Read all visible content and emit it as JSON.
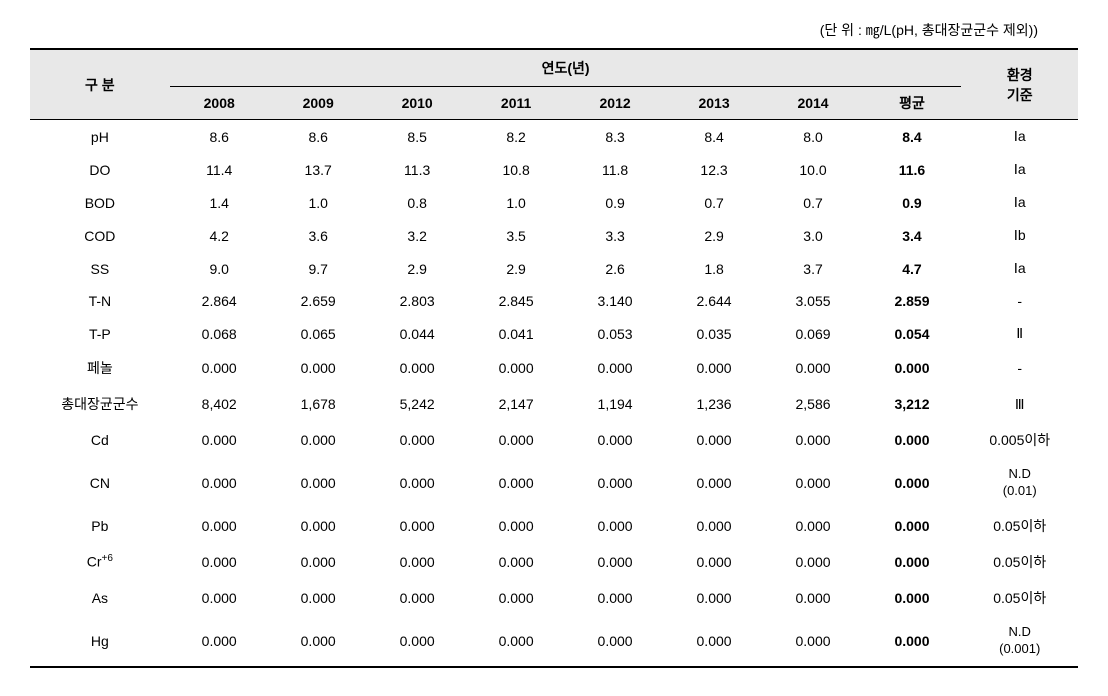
{
  "unit_note": "(단 위 : ㎎/L(pH, 총대장균군수 제외))",
  "header": {
    "category": "구 분",
    "year_group": "연도(년)",
    "standard": "환경\n기준",
    "years": [
      "2008",
      "2009",
      "2010",
      "2011",
      "2012",
      "2013",
      "2014"
    ],
    "average": "평균"
  },
  "rows": [
    {
      "label": "pH",
      "y2008": "8.6",
      "y2009": "8.6",
      "y2010": "8.5",
      "y2011": "8.2",
      "y2012": "8.3",
      "y2013": "8.4",
      "y2014": "8.0",
      "avg": "8.4",
      "std": "Ⅰa"
    },
    {
      "label": "DO",
      "y2008": "11.4",
      "y2009": "13.7",
      "y2010": "11.3",
      "y2011": "10.8",
      "y2012": "11.8",
      "y2013": "12.3",
      "y2014": "10.0",
      "avg": "11.6",
      "std": "Ⅰa"
    },
    {
      "label": "BOD",
      "y2008": "1.4",
      "y2009": "1.0",
      "y2010": "0.8",
      "y2011": "1.0",
      "y2012": "0.9",
      "y2013": "0.7",
      "y2014": "0.7",
      "avg": "0.9",
      "std": "Ⅰa"
    },
    {
      "label": "COD",
      "y2008": "4.2",
      "y2009": "3.6",
      "y2010": "3.2",
      "y2011": "3.5",
      "y2012": "3.3",
      "y2013": "2.9",
      "y2014": "3.0",
      "avg": "3.4",
      "std": "Ⅰb"
    },
    {
      "label": "SS",
      "y2008": "9.0",
      "y2009": "9.7",
      "y2010": "2.9",
      "y2011": "2.9",
      "y2012": "2.6",
      "y2013": "1.8",
      "y2014": "3.7",
      "avg": "4.7",
      "std": "Ⅰa"
    },
    {
      "label": "T-N",
      "y2008": "2.864",
      "y2009": "2.659",
      "y2010": "2.803",
      "y2011": "2.845",
      "y2012": "3.140",
      "y2013": "2.644",
      "y2014": "3.055",
      "avg": "2.859",
      "std": "-"
    },
    {
      "label": "T-P",
      "y2008": "0.068",
      "y2009": "0.065",
      "y2010": "0.044",
      "y2011": "0.041",
      "y2012": "0.053",
      "y2013": "0.035",
      "y2014": "0.069",
      "avg": "0.054",
      "std": "Ⅱ"
    },
    {
      "label": "페놀",
      "y2008": "0.000",
      "y2009": "0.000",
      "y2010": "0.000",
      "y2011": "0.000",
      "y2012": "0.000",
      "y2013": "0.000",
      "y2014": "0.000",
      "avg": "0.000",
      "std": "-"
    },
    {
      "label": "총대장균군수",
      "y2008": "8,402",
      "y2009": "1,678",
      "y2010": "5,242",
      "y2011": "2,147",
      "y2012": "1,194",
      "y2013": "1,236",
      "y2014": "2,586",
      "avg": "3,212",
      "std": "Ⅲ"
    },
    {
      "label": "Cd",
      "y2008": "0.000",
      "y2009": "0.000",
      "y2010": "0.000",
      "y2011": "0.000",
      "y2012": "0.000",
      "y2013": "0.000",
      "y2014": "0.000",
      "avg": "0.000",
      "std": "0.005이하"
    },
    {
      "label": "CN",
      "y2008": "0.000",
      "y2009": "0.000",
      "y2010": "0.000",
      "y2011": "0.000",
      "y2012": "0.000",
      "y2013": "0.000",
      "y2014": "0.000",
      "avg": "0.000",
      "std": "N.D\n(0.01)"
    },
    {
      "label": "Pb",
      "y2008": "0.000",
      "y2009": "0.000",
      "y2010": "0.000",
      "y2011": "0.000",
      "y2012": "0.000",
      "y2013": "0.000",
      "y2014": "0.000",
      "avg": "0.000",
      "std": "0.05이하"
    },
    {
      "label_html": "Cr<sup>+6</sup>",
      "label": "Cr+6",
      "y2008": "0.000",
      "y2009": "0.000",
      "y2010": "0.000",
      "y2011": "0.000",
      "y2012": "0.000",
      "y2013": "0.000",
      "y2014": "0.000",
      "avg": "0.000",
      "std": "0.05이하"
    },
    {
      "label": "As",
      "y2008": "0.000",
      "y2009": "0.000",
      "y2010": "0.000",
      "y2011": "0.000",
      "y2012": "0.000",
      "y2013": "0.000",
      "y2014": "0.000",
      "avg": "0.000",
      "std": "0.05이하"
    },
    {
      "label": "Hg",
      "y2008": "0.000",
      "y2009": "0.000",
      "y2010": "0.000",
      "y2011": "0.000",
      "y2012": "0.000",
      "y2013": "0.000",
      "y2014": "0.000",
      "avg": "0.000",
      "std": "N.D\n(0.001)"
    }
  ]
}
